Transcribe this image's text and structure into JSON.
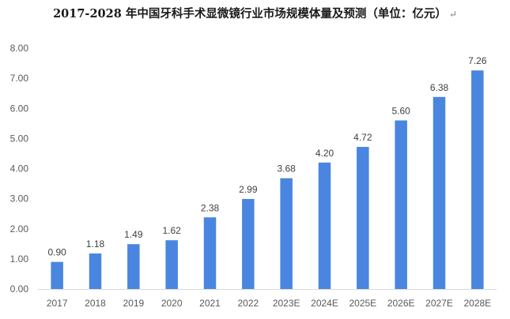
{
  "colors": {
    "bar": "#4a86e0",
    "axis": "#d9d9d9",
    "text": "#595959"
  },
  "title_return_mark": "↵",
  "chart_data": {
    "type": "bar",
    "title": "2017-2028 年中国牙科手术显微镜行业市场规模体量及预测（单位：亿元）",
    "categories": [
      "2017",
      "2018",
      "2019",
      "2020",
      "2021",
      "2022",
      "2023E",
      "2024E",
      "2025E",
      "2026E",
      "2027E",
      "2028E"
    ],
    "values": [
      0.9,
      1.18,
      1.49,
      1.62,
      2.38,
      2.99,
      3.68,
      4.2,
      4.72,
      5.6,
      6.38,
      7.26
    ],
    "data_labels": [
      "0.90",
      "1.18",
      "1.49",
      "1.62",
      "2.38",
      "2.99",
      "3.68",
      "4.20",
      "4.72",
      "5.60",
      "6.38",
      "7.26"
    ],
    "y_ticks": [
      "0.00",
      "1.00",
      "2.00",
      "3.00",
      "4.00",
      "5.00",
      "6.00",
      "7.00",
      "8.00"
    ],
    "ylim": [
      0,
      8
    ],
    "xlabel": "",
    "ylabel": "",
    "grid": false,
    "legend": "none"
  }
}
